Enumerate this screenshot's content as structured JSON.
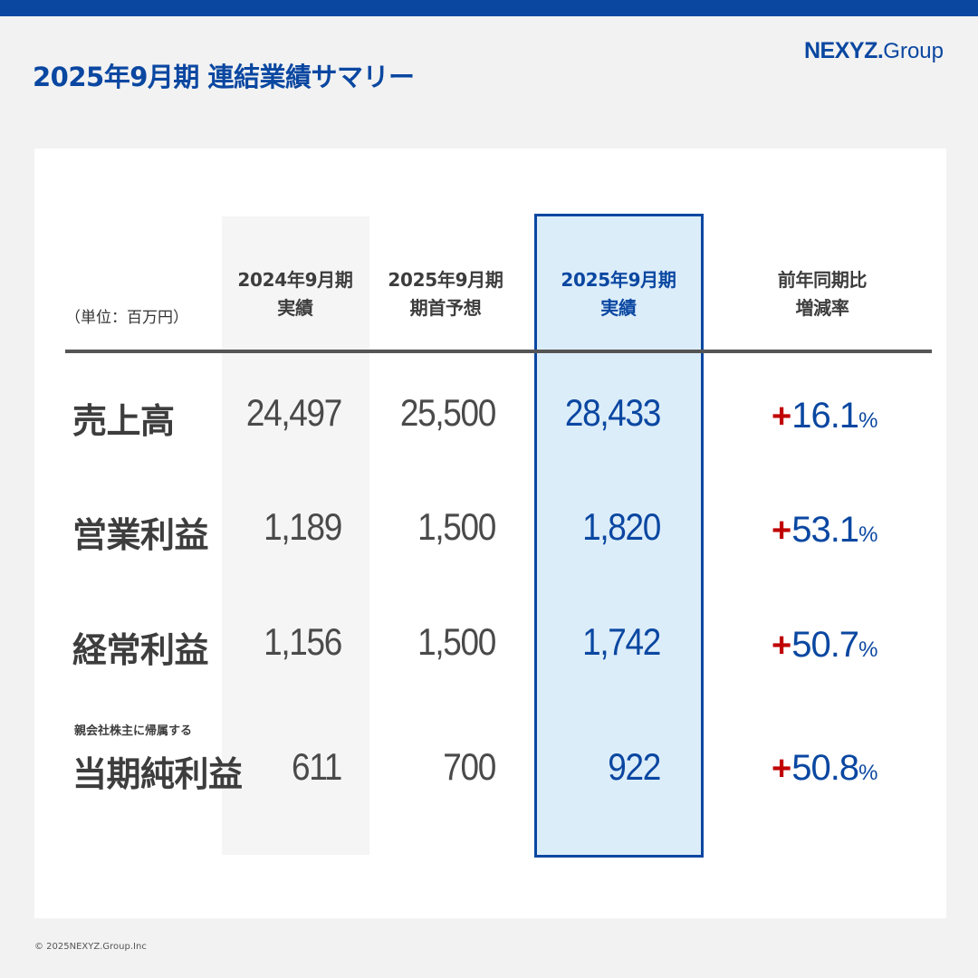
{
  "header": {
    "title": "2025年9月期 連結業績サマリー",
    "logo_main": "NEXYZ.",
    "logo_sub": "Group"
  },
  "table": {
    "unit_label": "（単位：百万円）",
    "columns": [
      {
        "line1": "2024年9月期",
        "line2": "実績"
      },
      {
        "line1": "2025年9月期",
        "line2": "期首予想"
      },
      {
        "line1": "2025年9月期",
        "line2": "実績"
      },
      {
        "line1": "前年同期比",
        "line2": "増減率"
      }
    ],
    "rows": [
      {
        "sublabel": "",
        "label": "売上高",
        "prev_actual": "24,497",
        "forecast": "25,500",
        "actual": "28,433",
        "change_sign": "+",
        "change": "16.1",
        "change_unit": "%"
      },
      {
        "sublabel": "",
        "label": "営業利益",
        "prev_actual": "1,189",
        "forecast": "1,500",
        "actual": "1,820",
        "change_sign": "+",
        "change": "53.1",
        "change_unit": "%"
      },
      {
        "sublabel": "",
        "label": "経常利益",
        "prev_actual": "1,156",
        "forecast": "1,500",
        "actual": "1,742",
        "change_sign": "+",
        "change": "50.7",
        "change_unit": "%"
      },
      {
        "sublabel": "親会社株主に帰属する",
        "label": "当期純利益",
        "prev_actual": "611",
        "forecast": "700",
        "actual": "922",
        "change_sign": "+",
        "change": "50.8",
        "change_unit": "%"
      }
    ]
  },
  "footer": {
    "copyright": "© 2025NEXYZ.Group.Inc"
  },
  "colors": {
    "brand_blue": "#0a47a1",
    "increase_red": "#c00000",
    "highlight_bg": "#dcedfa"
  }
}
